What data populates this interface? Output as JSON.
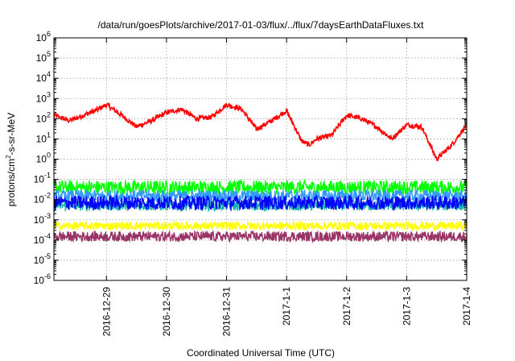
{
  "chart_data": {
    "type": "line",
    "title": "/data/run/goesPlots/archive/2017-01-03/flux/../flux/7daysEarthDataFluxes.txt",
    "xlabel": "Coordinated Universal Time (UTC)",
    "ylabel": "protons/cm²-s-sr-MeV",
    "ylabel_parts": {
      "pre": "protons/cm",
      "sup": "2",
      "post": "-s-sr-MeV"
    },
    "yscale": "log",
    "ylim": [
      1e-06,
      1000000
    ],
    "yticks": [
      {
        "value": 1e-06,
        "base": "10",
        "exp": "-6"
      },
      {
        "value": 1e-05,
        "base": "10",
        "exp": "-5"
      },
      {
        "value": 0.0001,
        "base": "10",
        "exp": "-4"
      },
      {
        "value": 0.001,
        "base": "10",
        "exp": "-3"
      },
      {
        "value": 0.01,
        "base": "10",
        "exp": "-2"
      },
      {
        "value": 0.1,
        "base": "10",
        "exp": "-1"
      },
      {
        "value": 1,
        "base": "10",
        "exp": "0"
      },
      {
        "value": 10,
        "base": "10",
        "exp": "1"
      },
      {
        "value": 100,
        "base": "10",
        "exp": "2"
      },
      {
        "value": 1000,
        "base": "10",
        "exp": "3"
      },
      {
        "value": 10000,
        "base": "10",
        "exp": "4"
      },
      {
        "value": 100000,
        "base": "10",
        "exp": "5"
      },
      {
        "value": 1000000,
        "base": "10",
        "exp": "6"
      }
    ],
    "xlim": [
      "2016-12-28 03:00",
      "2017-01-04 00:00"
    ],
    "xticks": [
      {
        "value": "2016-12-29 00:00",
        "label": "2016-12-29"
      },
      {
        "value": "2016-12-30 00:00",
        "label": "2016-12-30"
      },
      {
        "value": "2016-12-31 00:00",
        "label": "2016-12-31"
      },
      {
        "value": "2017-01-01 00:00",
        "label": "2017-1-1"
      },
      {
        "value": "2017-01-02 00:00",
        "label": "2017-1-2"
      },
      {
        "value": "2017-01-03 00:00",
        "label": "2017-1-3"
      },
      {
        "value": "2017-01-04 00:00",
        "label": "2017-1-4"
      }
    ],
    "grid": true,
    "series": [
      {
        "color": "#ff0000",
        "x": [
          "2016-12-28 03:00",
          "2016-12-28 09:00",
          "2016-12-28 15:00",
          "2016-12-28 21:00",
          "2016-12-29 00:00",
          "2016-12-29 06:00",
          "2016-12-29 12:00",
          "2016-12-29 18:00",
          "2016-12-30 00:00",
          "2016-12-30 06:00",
          "2016-12-30 12:00",
          "2016-12-30 18:00",
          "2016-12-31 00:00",
          "2016-12-31 06:00",
          "2016-12-31 12:00",
          "2016-12-31 18:00",
          "2017-01-01 00:00",
          "2017-01-01 06:00",
          "2017-01-01 09:00",
          "2017-01-01 12:00",
          "2017-01-01 18:00",
          "2017-01-02 00:00",
          "2017-01-02 06:00",
          "2017-01-02 12:00",
          "2017-01-02 18:00",
          "2017-01-03 00:00",
          "2017-01-03 06:00",
          "2017-01-03 12:00",
          "2017-01-03 18:00",
          "2017-01-04 00:00"
        ],
        "values": [
          150,
          80,
          150,
          300,
          500,
          150,
          40,
          80,
          200,
          300,
          100,
          120,
          500,
          300,
          30,
          80,
          250,
          8,
          5,
          10,
          15,
          150,
          100,
          40,
          10,
          50,
          40,
          1,
          5,
          50
        ]
      },
      {
        "color": "#00ff00",
        "x": [
          "2016-12-28 03:00",
          "2016-12-29 00:00",
          "2016-12-30 00:00",
          "2016-12-31 00:00",
          "2017-01-01 00:00",
          "2017-01-02 00:00",
          "2017-01-03 00:00",
          "2017-01-04 00:00"
        ],
        "values": [
          0.04,
          0.04,
          0.04,
          0.04,
          0.04,
          0.04,
          0.04,
          0.04
        ]
      },
      {
        "color": "#1ab3b3",
        "x": [
          "2016-12-28 03:00",
          "2016-12-29 00:00",
          "2016-12-30 00:00",
          "2016-12-31 00:00",
          "2017-01-01 00:00",
          "2017-01-02 00:00",
          "2017-01-03 00:00",
          "2017-01-04 00:00"
        ],
        "values": [
          0.005,
          0.005,
          0.005,
          0.005,
          0.005,
          0.005,
          0.005,
          0.005
        ]
      },
      {
        "color": "#3399ff",
        "x": [
          "2016-12-28 03:00",
          "2016-12-29 00:00",
          "2016-12-30 00:00",
          "2016-12-31 00:00",
          "2017-01-01 00:00",
          "2017-01-02 00:00",
          "2017-01-03 00:00",
          "2017-01-04 00:00"
        ],
        "values": [
          0.015,
          0.015,
          0.015,
          0.015,
          0.015,
          0.015,
          0.015,
          0.015
        ]
      },
      {
        "color": "#0000ff",
        "x": [
          "2016-12-28 03:00",
          "2016-12-29 00:00",
          "2016-12-30 00:00",
          "2016-12-31 00:00",
          "2017-01-01 00:00",
          "2017-01-02 00:00",
          "2017-01-03 00:00",
          "2017-01-04 00:00"
        ],
        "values": [
          0.007,
          0.007,
          0.007,
          0.007,
          0.007,
          0.007,
          0.007,
          0.007
        ]
      },
      {
        "color": "#ffff00",
        "x": [
          "2016-12-28 03:00",
          "2016-12-29 00:00",
          "2016-12-30 00:00",
          "2016-12-31 00:00",
          "2017-01-01 00:00",
          "2017-01-02 00:00",
          "2017-01-03 00:00",
          "2017-01-04 00:00"
        ],
        "values": [
          0.0005,
          0.0005,
          0.0005,
          0.0005,
          0.0005,
          0.0005,
          0.0005,
          0.0005
        ]
      },
      {
        "color": "#993366",
        "x": [
          "2016-12-28 03:00",
          "2016-12-29 00:00",
          "2016-12-30 00:00",
          "2016-12-31 00:00",
          "2017-01-01 00:00",
          "2017-01-02 00:00",
          "2017-01-03 00:00",
          "2017-01-04 00:00"
        ],
        "values": [
          0.00015,
          0.00015,
          0.00015,
          0.00015,
          0.00015,
          0.00015,
          0.00015,
          0.00015
        ]
      }
    ]
  }
}
